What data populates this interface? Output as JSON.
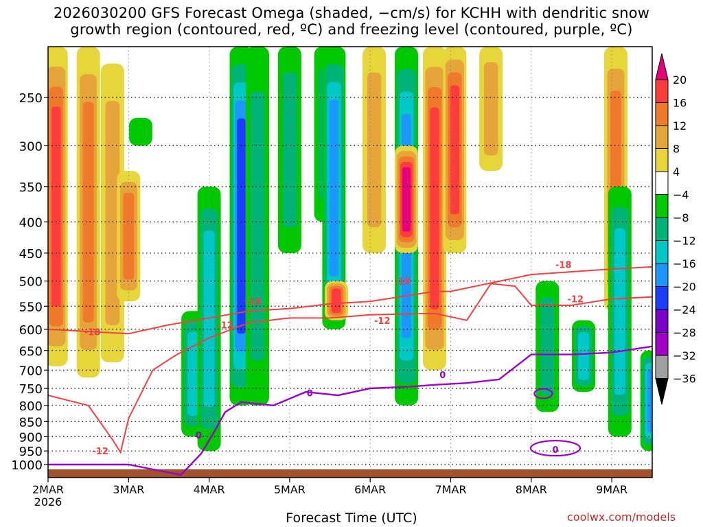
{
  "title": {
    "line1": "2026030200 GFS Forecast Omega (shaded, −cm/s) for KCHH with dendritic snow",
    "line2": "growth region (contoured, red, ºC) and freezing level (contoured, purple, ºC)"
  },
  "credit": "coolwx.com/models",
  "chart_data": {
    "type": "heatmap",
    "title": "2026030200 GFS Forecast Omega (shaded, −cm/s) for KCHH with dendritic snow growth region (contoured, red, ºC) and freezing level (contoured, purple, ºC)",
    "xlabel": "Forecast Time (UTC)",
    "ylabel": "",
    "x_ticks": [
      "2MAR",
      "3MAR",
      "4MAR",
      "5MAR",
      "6MAR",
      "7MAR",
      "8MAR",
      "9MAR"
    ],
    "x_sub_label": "2026",
    "y_ticks": [
      250,
      300,
      350,
      400,
      450,
      500,
      550,
      600,
      650,
      700,
      750,
      800,
      850,
      900,
      950,
      1000
    ],
    "y_scale": "log-pressure",
    "grid": true,
    "colorbar": {
      "ticks": [
        20,
        16,
        12,
        8,
        4,
        -4,
        -8,
        -12,
        -16,
        -20,
        -24,
        -28,
        -32,
        -36
      ],
      "colors": [
        "#e6007e",
        "#ff3c3c",
        "#f07a2a",
        "#e6a53a",
        "#e6d63c",
        "#ffffff",
        "#00c800",
        "#00b478",
        "#00c8c8",
        "#1e96ff",
        "#1e3cff",
        "#7800c8",
        "#a000c8",
        "#a0a0a0",
        "#000000"
      ]
    },
    "contours": {
      "dendritic_growth_region": {
        "color": "#f04040",
        "levels": [
          -12,
          -18
        ],
        "labels": [
          "-18",
          "-12",
          "-18",
          "-12",
          "-18",
          "-12",
          "-18",
          "-12"
        ]
      },
      "freezing_level": {
        "color": "#9a00c8",
        "levels": [
          0
        ],
        "labels": [
          "0",
          "0",
          "0",
          "0"
        ]
      }
    },
    "omega_columns": [
      {
        "day": 0.1,
        "top": 200,
        "bottom": 690,
        "type": "positive",
        "max": 16
      },
      {
        "day": 0.5,
        "top": 200,
        "bottom": 720,
        "type": "positive",
        "max": 12
      },
      {
        "day": 0.8,
        "top": 220,
        "bottom": 680,
        "type": "positive",
        "max": 8
      },
      {
        "day": 1.0,
        "top": 330,
        "bottom": 540,
        "type": "positive",
        "max": 12
      },
      {
        "day": 1.15,
        "top": 270,
        "bottom": 300,
        "type": "negative",
        "max": -4
      },
      {
        "day": 1.8,
        "top": 560,
        "bottom": 900,
        "type": "negative",
        "max": -12
      },
      {
        "day": 2.0,
        "top": 350,
        "bottom": 950,
        "type": "negative",
        "max": -12
      },
      {
        "day": 2.4,
        "top": 200,
        "bottom": 800,
        "type": "negative",
        "max": -20
      },
      {
        "day": 2.6,
        "top": 200,
        "bottom": 800,
        "type": "negative",
        "max": -8
      },
      {
        "day": 3.0,
        "top": 200,
        "bottom": 450,
        "type": "negative",
        "max": -8
      },
      {
        "day": 3.45,
        "top": 200,
        "bottom": 400,
        "type": "negative",
        "max": -8
      },
      {
        "day": 3.55,
        "top": 200,
        "bottom": 600,
        "type": "negative",
        "max": -16
      },
      {
        "day": 3.58,
        "top": 500,
        "bottom": 580,
        "type": "positive",
        "max": 16
      },
      {
        "day": 4.05,
        "top": 200,
        "bottom": 450,
        "type": "positive",
        "max": 8
      },
      {
        "day": 4.45,
        "top": 200,
        "bottom": 800,
        "type": "negative",
        "max": -16
      },
      {
        "day": 4.45,
        "top": 300,
        "bottom": 450,
        "type": "positive",
        "max": 20
      },
      {
        "day": 4.8,
        "top": 200,
        "bottom": 700,
        "type": "positive",
        "max": 16
      },
      {
        "day": 5.05,
        "top": 200,
        "bottom": 450,
        "type": "positive",
        "max": 16
      },
      {
        "day": 5.5,
        "top": 200,
        "bottom": 330,
        "type": "positive",
        "max": 8
      },
      {
        "day": 6.2,
        "top": 500,
        "bottom": 820,
        "type": "negative",
        "max": -8
      },
      {
        "day": 6.65,
        "top": 580,
        "bottom": 760,
        "type": "negative",
        "max": -12
      },
      {
        "day": 7.05,
        "top": 200,
        "bottom": 560,
        "type": "positive",
        "max": 12
      },
      {
        "day": 7.1,
        "top": 350,
        "bottom": 900,
        "type": "negative",
        "max": -12
      },
      {
        "day": 7.5,
        "top": 650,
        "bottom": 950,
        "type": "negative",
        "max": -16
      }
    ]
  }
}
